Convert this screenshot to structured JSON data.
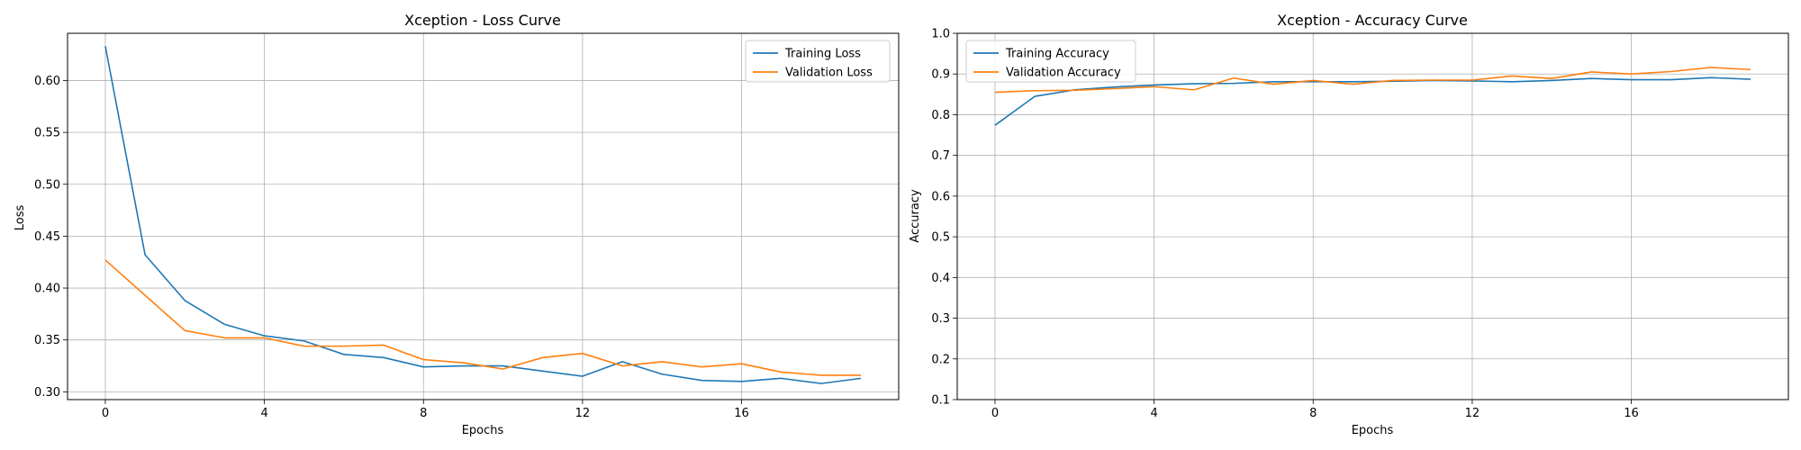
{
  "chart_data": [
    {
      "type": "line",
      "title": "Xception - Loss Curve",
      "xlabel": "Epochs",
      "ylabel": "Loss",
      "x": [
        0,
        1,
        2,
        3,
        4,
        5,
        6,
        7,
        8,
        9,
        10,
        11,
        12,
        13,
        14,
        15,
        16,
        17,
        18,
        19
      ],
      "xticks": [
        0,
        4,
        8,
        12,
        16
      ],
      "yticks": [
        0.3,
        0.35,
        0.4,
        0.45,
        0.5,
        0.55,
        0.6
      ],
      "xlim": [
        -0.95,
        19.95
      ],
      "ylim": [
        0.2925,
        0.6455
      ],
      "grid": true,
      "legend_position": "top-right",
      "series": [
        {
          "name": "Training Loss",
          "color": "#1f77b4",
          "values": [
            0.633,
            0.432,
            0.388,
            0.365,
            0.354,
            0.349,
            0.336,
            0.333,
            0.324,
            0.325,
            0.325,
            0.32,
            0.315,
            0.329,
            0.317,
            0.311,
            0.31,
            0.313,
            0.308,
            0.313
          ]
        },
        {
          "name": "Validation Loss",
          "color": "#ff7f0e",
          "values": [
            0.427,
            0.393,
            0.359,
            0.352,
            0.352,
            0.344,
            0.344,
            0.345,
            0.331,
            0.328,
            0.322,
            0.333,
            0.337,
            0.325,
            0.329,
            0.324,
            0.327,
            0.319,
            0.316,
            0.316
          ]
        }
      ]
    },
    {
      "type": "line",
      "title": "Xception - Accuracy Curve",
      "xlabel": "Epochs",
      "ylabel": "Accuracy",
      "x": [
        0,
        1,
        2,
        3,
        4,
        5,
        6,
        7,
        8,
        9,
        10,
        11,
        12,
        13,
        14,
        15,
        16,
        17,
        18,
        19
      ],
      "xticks": [
        0,
        4,
        8,
        12,
        16
      ],
      "yticks": [
        0.1,
        0.2,
        0.3,
        0.4,
        0.5,
        0.6,
        0.7,
        0.8,
        0.9,
        1.0
      ],
      "xlim": [
        -0.95,
        19.95
      ],
      "ylim": [
        0.1,
        1.0
      ],
      "grid": true,
      "legend_position": "top-left",
      "series": [
        {
          "name": "Training Accuracy",
          "color": "#1f77b4",
          "values": [
            0.774,
            0.845,
            0.861,
            0.868,
            0.873,
            0.876,
            0.877,
            0.881,
            0.881,
            0.881,
            0.882,
            0.884,
            0.883,
            0.881,
            0.884,
            0.889,
            0.886,
            0.886,
            0.891,
            0.887
          ]
        },
        {
          "name": "Validation Accuracy",
          "color": "#ff7f0e",
          "values": [
            0.855,
            0.859,
            0.86,
            0.864,
            0.869,
            0.861,
            0.89,
            0.875,
            0.884,
            0.875,
            0.884,
            0.885,
            0.885,
            0.895,
            0.889,
            0.905,
            0.9,
            0.906,
            0.916,
            0.911
          ]
        }
      ]
    }
  ]
}
